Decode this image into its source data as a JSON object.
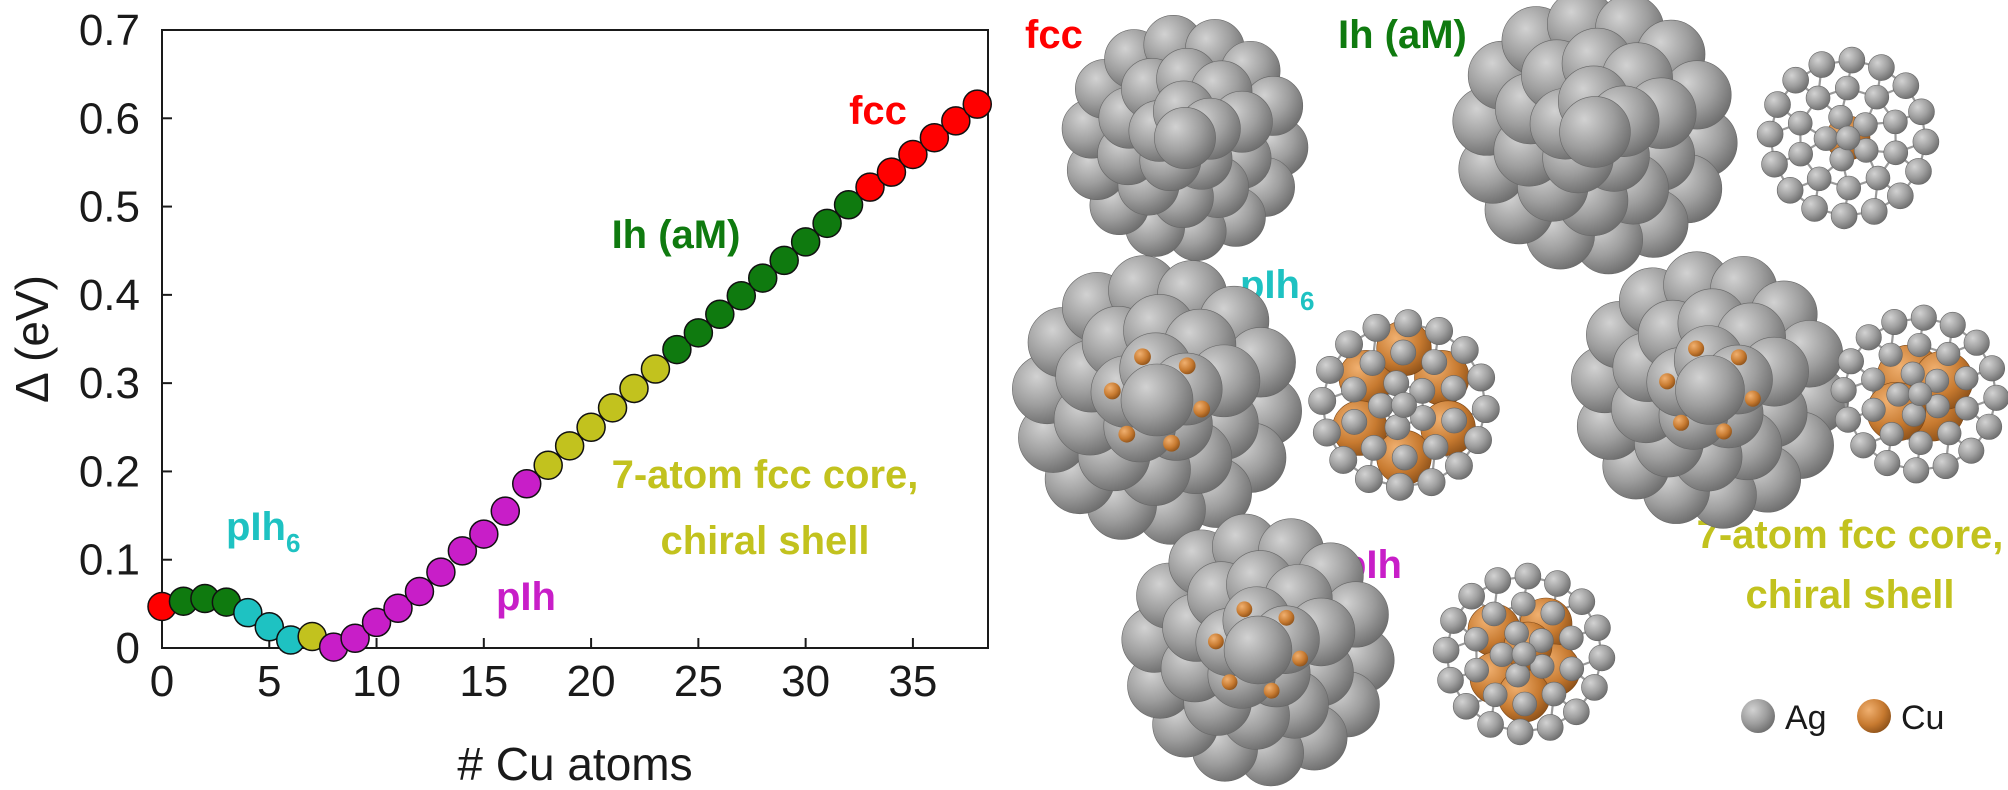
{
  "chart_data": {
    "type": "scatter",
    "xlabel": "# Cu atoms",
    "ylabel": "Δ (eV)",
    "xlim": [
      0,
      38.5
    ],
    "ylim": [
      0,
      0.7
    ],
    "xticks": [
      "0",
      "5",
      "10",
      "15",
      "20",
      "25",
      "30",
      "35"
    ],
    "yticks": [
      "0",
      "0.1",
      "0.2",
      "0.3",
      "0.4",
      "0.5",
      "0.6",
      "0.7"
    ],
    "grid": false,
    "colors": {
      "fcc": "#ff0000",
      "Ih (aM)": "#0f7a0f",
      "pIh6": "#1ec2c2",
      "pIh": "#c81ec8",
      "7-atom fcc core, chiral shell": "#c2c21e"
    },
    "points": [
      {
        "x": 0,
        "y": 0.047,
        "group": "fcc"
      },
      {
        "x": 1,
        "y": 0.053,
        "group": "Ih (aM)"
      },
      {
        "x": 2,
        "y": 0.056,
        "group": "Ih (aM)"
      },
      {
        "x": 3,
        "y": 0.052,
        "group": "Ih (aM)"
      },
      {
        "x": 4,
        "y": 0.04,
        "group": "pIh6"
      },
      {
        "x": 5,
        "y": 0.024,
        "group": "pIh6"
      },
      {
        "x": 6,
        "y": 0.009,
        "group": "pIh6"
      },
      {
        "x": 7,
        "y": 0.013,
        "group": "7-atom fcc core, chiral shell"
      },
      {
        "x": 8,
        "y": 0.001,
        "group": "pIh"
      },
      {
        "x": 9,
        "y": 0.011,
        "group": "pIh"
      },
      {
        "x": 10,
        "y": 0.029,
        "group": "pIh"
      },
      {
        "x": 11,
        "y": 0.045,
        "group": "pIh"
      },
      {
        "x": 12,
        "y": 0.064,
        "group": "pIh"
      },
      {
        "x": 13,
        "y": 0.086,
        "group": "pIh"
      },
      {
        "x": 14,
        "y": 0.11,
        "group": "pIh"
      },
      {
        "x": 15,
        "y": 0.129,
        "group": "pIh"
      },
      {
        "x": 16,
        "y": 0.155,
        "group": "pIh"
      },
      {
        "x": 17,
        "y": 0.186,
        "group": "pIh"
      },
      {
        "x": 18,
        "y": 0.207,
        "group": "7-atom fcc core, chiral shell"
      },
      {
        "x": 19,
        "y": 0.229,
        "group": "7-atom fcc core, chiral shell"
      },
      {
        "x": 20,
        "y": 0.25,
        "group": "7-atom fcc core, chiral shell"
      },
      {
        "x": 21,
        "y": 0.272,
        "group": "7-atom fcc core, chiral shell"
      },
      {
        "x": 22,
        "y": 0.294,
        "group": "7-atom fcc core, chiral shell"
      },
      {
        "x": 23,
        "y": 0.316,
        "group": "7-atom fcc core, chiral shell"
      },
      {
        "x": 24,
        "y": 0.338,
        "group": "Ih (aM)"
      },
      {
        "x": 25,
        "y": 0.357,
        "group": "Ih (aM)"
      },
      {
        "x": 26,
        "y": 0.378,
        "group": "Ih (aM)"
      },
      {
        "x": 27,
        "y": 0.399,
        "group": "Ih (aM)"
      },
      {
        "x": 28,
        "y": 0.419,
        "group": "Ih (aM)"
      },
      {
        "x": 29,
        "y": 0.439,
        "group": "Ih (aM)"
      },
      {
        "x": 30,
        "y": 0.46,
        "group": "Ih (aM)"
      },
      {
        "x": 31,
        "y": 0.481,
        "group": "Ih (aM)"
      },
      {
        "x": 32,
        "y": 0.502,
        "group": "Ih (aM)"
      },
      {
        "x": 33,
        "y": 0.522,
        "group": "fcc"
      },
      {
        "x": 34,
        "y": 0.539,
        "group": "fcc"
      },
      {
        "x": 35,
        "y": 0.559,
        "group": "fcc"
      },
      {
        "x": 36,
        "y": 0.578,
        "group": "fcc"
      },
      {
        "x": 37,
        "y": 0.597,
        "group": "fcc"
      },
      {
        "x": 38,
        "y": 0.616,
        "group": "fcc"
      }
    ],
    "annotations": {
      "fcc": "fcc",
      "ih": "Ih (aM)",
      "pih6_base": "pIh",
      "pih6_sub": "6",
      "pih": "pIh",
      "core_line1": "7-atom fcc core,",
      "core_line2": "chiral shell"
    }
  },
  "structures": {
    "labels": {
      "fcc": "fcc",
      "ih": "Ih (aM)",
      "pih6_base": "pIh",
      "pih6_sub": "6",
      "pih": "pIh",
      "core_line1": "7-atom fcc core,",
      "core_line2": "chiral shell"
    },
    "legend": [
      {
        "label": "Ag",
        "color": "#a8a8a8"
      },
      {
        "label": "Cu",
        "color": "#c9792a"
      }
    ]
  }
}
